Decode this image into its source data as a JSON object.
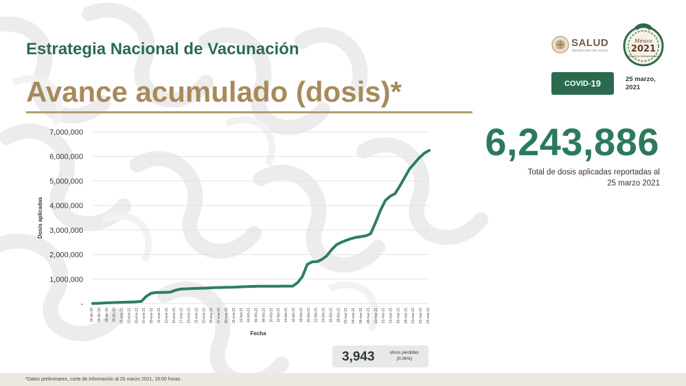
{
  "header": {
    "title": "Estrategia Nacional de Vacunación",
    "subtitle": "Avance acumulado (dosis)*"
  },
  "logo": {
    "salud": "SALUD",
    "salud_sub": "SECRETARÍA DE SALUD"
  },
  "seal": {
    "line1": "México",
    "year": "2021",
    "line2": "Año de la Independencia"
  },
  "badge": {
    "covid_a": "COVID-",
    "covid_b": "19"
  },
  "report_date": {
    "line1": "25 marzo,",
    "line2": "2021"
  },
  "total": {
    "value": "6,243,886",
    "caption_line1": "Total de dosis aplicadas reportadas al",
    "caption_line2": "25 marzo 2021"
  },
  "lost_doses": {
    "value": "3,943",
    "label_line1": "dosis perdidas",
    "label_line2": "(0.06%)"
  },
  "footnote": "*Datos preliminares, corte de información al 25 marzo 2021, 16:00 horas.",
  "colors": {
    "green": "#2c7a5c",
    "gold": "#a78a5b",
    "dark_green": "#2b6a4f",
    "line": "#2e7d62"
  },
  "chart_data": {
    "type": "line",
    "xlabel": "Fecha",
    "ylabel": "Dosis aplicadas",
    "ylim": [
      0,
      7000000
    ],
    "yticks": [
      "-",
      "1,000,000",
      "2,000,000",
      "3,000,000",
      "4,000,000",
      "5,000,000",
      "6,000,000",
      "7,000,000"
    ],
    "x_ticklabels": [
      "24-dic-20",
      "26-dic-20",
      "28-dic-20",
      "30-dic-20",
      "01-ene-21",
      "03-ene-21",
      "05-ene-21",
      "07-ene-21",
      "09-ene-21",
      "11-ene-21",
      "13-ene-21",
      "15-ene-21",
      "17-ene-21",
      "19-ene-21",
      "21-ene-21",
      "23-ene-21",
      "25-ene-21",
      "27-ene-21",
      "29-ene-21",
      "31-ene-21",
      "02-feb-21",
      "04-feb-21",
      "06-feb-21",
      "08-feb-21",
      "10-feb-21",
      "12-feb-21",
      "14-feb-21",
      "16-feb-21",
      "18-feb-21",
      "20-feb-21",
      "22-feb-21",
      "24-feb-21",
      "26-feb-21",
      "28-feb-21",
      "02-mar-21",
      "04-mar-21",
      "06-mar-21",
      "08-mar-21",
      "10-mar-21",
      "12-mar-21",
      "14-mar-21",
      "16-mar-21",
      "18-mar-21",
      "20-mar-21",
      "22-mar-21",
      "24-mar-21"
    ],
    "grid": true,
    "series": [
      {
        "values": [
          2924,
          10000,
          20000,
          30000,
          40000,
          45000,
          52000,
          60000,
          65000,
          72000,
          90000,
          300000,
          420000,
          450000,
          455000,
          460000,
          470000,
          550000,
          590000,
          600000,
          610000,
          620000,
          625000,
          630000,
          640000,
          650000,
          655000,
          660000,
          665000,
          670000,
          680000,
          690000,
          695000,
          700000,
          705000,
          706000,
          707000,
          708000,
          709000,
          710000,
          711000,
          712000,
          850000,
          1100000,
          1600000,
          1700000,
          1710000,
          1800000,
          1950000,
          2200000,
          2400000,
          2500000,
          2580000,
          2650000,
          2700000,
          2730000,
          2760000,
          2850000,
          3300000,
          3800000,
          4200000,
          4380000,
          4480000,
          4800000,
          5150000,
          5500000,
          5720000,
          5950000,
          6130000,
          6243886
        ]
      }
    ]
  }
}
